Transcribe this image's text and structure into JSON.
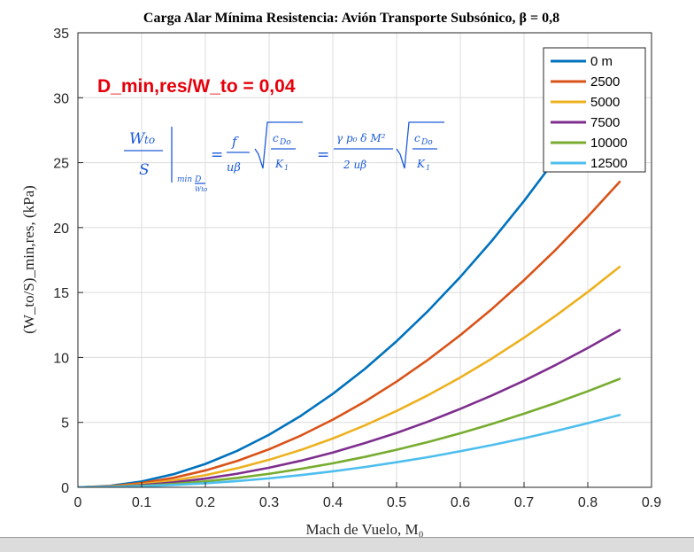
{
  "chart_data": {
    "type": "line",
    "title": "Carga Alar Mínima Resistencia: Avión Transporte Subsónico, β = 0,8",
    "xlabel": "Mach de Vuelo, M₀",
    "ylabel": "(W_to/S)_min,res, (kPa)",
    "xlim": [
      0,
      0.9
    ],
    "ylim": [
      0,
      35
    ],
    "xticks": [
      "0",
      "0.1",
      "0.2",
      "0.3",
      "0.4",
      "0.5",
      "0.6",
      "0.7",
      "0.8",
      "0.9"
    ],
    "yticks": [
      "0",
      "5",
      "10",
      "15",
      "20",
      "25",
      "30",
      "35"
    ],
    "grid": true,
    "legend_position": "top-right",
    "x": [
      0,
      0.05,
      0.1,
      0.15,
      0.2,
      0.25,
      0.3,
      0.35,
      0.4,
      0.45,
      0.5,
      0.55,
      0.6,
      0.65,
      0.7,
      0.75,
      0.8,
      0.85
    ],
    "series": [
      {
        "name": "0 m",
        "color": "#0072BD",
        "values": [
          0,
          0.11,
          0.45,
          1.01,
          1.8,
          2.81,
          4.05,
          5.51,
          7.2,
          9.11,
          11.25,
          13.61,
          16.2,
          19.01,
          22.05,
          25.31,
          28.8,
          32.51
        ]
      },
      {
        "name": "2500",
        "color": "#D95319",
        "values": [
          0,
          0.08,
          0.33,
          0.73,
          1.3,
          2.03,
          2.93,
          3.99,
          5.21,
          6.59,
          8.14,
          9.85,
          11.72,
          13.75,
          15.95,
          18.31,
          20.84,
          23.52
        ]
      },
      {
        "name": "5000",
        "color": "#EDB120",
        "values": [
          0,
          0.06,
          0.24,
          0.53,
          0.94,
          1.47,
          2.12,
          2.88,
          3.76,
          4.76,
          5.88,
          7.11,
          8.46,
          9.93,
          11.52,
          13.22,
          15.04,
          16.98
        ]
      },
      {
        "name": "7500",
        "color": "#7E2F8E",
        "values": [
          0,
          0.04,
          0.17,
          0.38,
          0.67,
          1.05,
          1.51,
          2.05,
          2.68,
          3.4,
          4.19,
          5.07,
          6.04,
          7.08,
          8.21,
          9.43,
          10.73,
          12.11
        ]
      },
      {
        "name": "10000",
        "color": "#77AC30",
        "values": [
          0,
          0.03,
          0.12,
          0.26,
          0.46,
          0.72,
          1.04,
          1.42,
          1.85,
          2.34,
          2.89,
          3.5,
          4.16,
          4.89,
          5.67,
          6.5,
          7.4,
          8.35
        ]
      },
      {
        "name": "12500",
        "color": "#4DBEEE",
        "values": [
          0,
          0.02,
          0.08,
          0.18,
          0.31,
          0.48,
          0.69,
          0.94,
          1.23,
          1.56,
          1.93,
          2.33,
          2.78,
          3.26,
          3.78,
          4.34,
          4.94,
          5.57
        ]
      }
    ],
    "annotations": {
      "drag_ratio_label": "D_min,res/W_to = 0,04",
      "drag_ratio_color": "#E5000B",
      "handwritten_color": "#1E5BD8"
    }
  }
}
